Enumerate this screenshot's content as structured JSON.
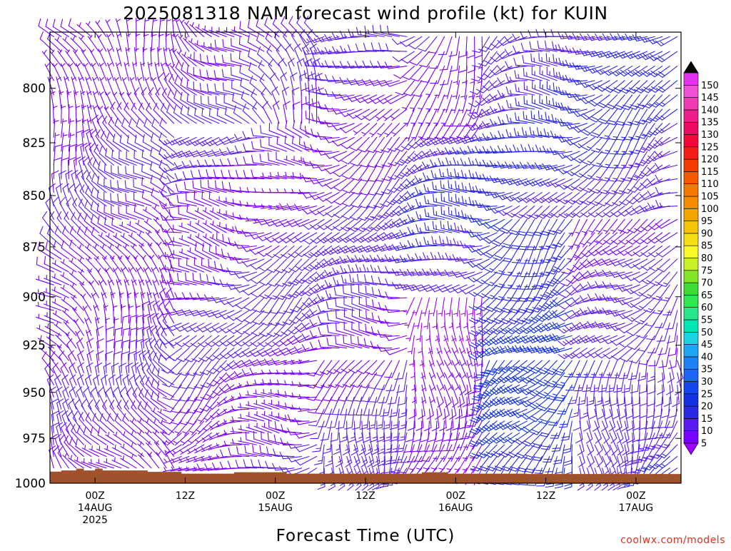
{
  "chart_data": {
    "type": "wind-barb time-height cross section",
    "title": "2025081318 NAM forecast wind profile (kt) for KUIN",
    "xlabel": "Forecast Time (UTC)",
    "ylabel": "",
    "credit": "coolwx.com/models",
    "y_axis": {
      "unit": "hPa",
      "direction": "decreasing upward",
      "range": [
        1000,
        775
      ],
      "tick_labels": [
        "800",
        "825",
        "850",
        "875",
        "900",
        "925",
        "950",
        "975",
        "1000"
      ],
      "tick_values": [
        800,
        825,
        850,
        875,
        900,
        925,
        950,
        975,
        1000
      ]
    },
    "x_axis": {
      "unit": "hours since 2025-08-13 18Z",
      "range": [
        0,
        84
      ],
      "ticks": [
        {
          "hour": 6,
          "lines": [
            "00Z",
            "14AUG",
            "2025"
          ]
        },
        {
          "hour": 18,
          "lines": [
            "12Z"
          ]
        },
        {
          "hour": 30,
          "lines": [
            "00Z",
            "15AUG"
          ]
        },
        {
          "hour": 42,
          "lines": [
            "12Z"
          ]
        },
        {
          "hour": 54,
          "lines": [
            "00Z",
            "16AUG"
          ]
        },
        {
          "hour": 66,
          "lines": [
            "12Z"
          ]
        },
        {
          "hour": 78,
          "lines": [
            "00Z",
            "17AUG"
          ]
        }
      ]
    },
    "colorbar": {
      "unit": "kt",
      "labels": [
        "5",
        "10",
        "15",
        "20",
        "25",
        "30",
        "35",
        "40",
        "45",
        "50",
        "55",
        "60",
        "65",
        "70",
        "75",
        "80",
        "85",
        "90",
        "95",
        "100",
        "105",
        "110",
        "115",
        "120",
        "125",
        "130",
        "135",
        "140",
        "145",
        "150"
      ],
      "colors": [
        "#7a00ff",
        "#5a1cf2",
        "#2b28e6",
        "#1432e2",
        "#1446ee",
        "#1e64f5",
        "#1e82f5",
        "#1ea6f5",
        "#1cd2e6",
        "#00e6b4",
        "#28e68c",
        "#32e650",
        "#3cdc32",
        "#82e628",
        "#c8f028",
        "#fafa28",
        "#f5de14",
        "#f5c30a",
        "#f5a500",
        "#f58c00",
        "#f57800",
        "#f55a00",
        "#f53c00",
        "#f51e14",
        "#f00a3c",
        "#ee0a64",
        "#f01e8c",
        "#f03cb4",
        "#f050d7",
        "#e632f0"
      ],
      "under_color": "#a000ff",
      "over_color": "#000000"
    },
    "terrain_color": "#a0522d",
    "terrain": [
      [
        0.0,
        993.5
      ],
      [
        1.5,
        993.5
      ],
      [
        1.5,
        992.8
      ],
      [
        3.5,
        992.8
      ],
      [
        3.5,
        991.8
      ],
      [
        4.5,
        991.8
      ],
      [
        4.5,
        992.8
      ],
      [
        6.0,
        992.8
      ],
      [
        6.0,
        991.8
      ],
      [
        7.0,
        991.8
      ],
      [
        7.0,
        992.8
      ],
      [
        13.0,
        992.8
      ],
      [
        13.0,
        993.6
      ],
      [
        17.5,
        993.6
      ],
      [
        17.5,
        994.6
      ],
      [
        24.5,
        994.6
      ],
      [
        24.5,
        993.8
      ],
      [
        31.5,
        993.8
      ],
      [
        31.5,
        994.6
      ],
      [
        49.5,
        994.6
      ],
      [
        49.5,
        993.8
      ],
      [
        53.0,
        993.8
      ],
      [
        53.0,
        994.6
      ],
      [
        63.5,
        994.6
      ],
      [
        63.5,
        994.8
      ],
      [
        84.0,
        994.8
      ],
      [
        84.0,
        1000
      ],
      [
        0.0,
        1000
      ]
    ],
    "barb_sampling": {
      "x_step_hours": 1,
      "first_hour": 0.5,
      "levels_hPa_from": 1000,
      "levels_hPa_to": 775,
      "level_step_hPa": 6.5
    },
    "wind_regimes": [
      {
        "hours": [
          0,
          17
        ],
        "levels": "all",
        "direction_deg": 325,
        "speed_kt": 8
      },
      {
        "hours": [
          17,
          36
        ],
        "levels": "below 900",
        "direction_deg": 250,
        "speed_kt": 9
      },
      {
        "hours": [
          17,
          36
        ],
        "levels": "900-820",
        "direction_deg": 260,
        "speed_kt": 10
      },
      {
        "hours": [
          17,
          36
        ],
        "levels": "above 820",
        "direction_deg": 320,
        "speed_kt": 8
      },
      {
        "hours": [
          36,
          48
        ],
        "levels": "below 930",
        "direction_deg": 200,
        "speed_kt": 12
      },
      {
        "hours": [
          36,
          48
        ],
        "levels": "930-820",
        "direction_deg": 250,
        "speed_kt": 11
      },
      {
        "hours": [
          36,
          48
        ],
        "levels": "above 820",
        "direction_deg": 250,
        "speed_kt": 10
      },
      {
        "hours": [
          48,
          58
        ],
        "levels": "below 900",
        "direction_deg": 195,
        "speed_kt": 6
      },
      {
        "hours": [
          48,
          58
        ],
        "levels": "900-820",
        "direction_deg": 245,
        "speed_kt": 14
      },
      {
        "hours": [
          48,
          58
        ],
        "levels": "above 820",
        "direction_deg": 220,
        "speed_kt": 10
      },
      {
        "hours": [
          58,
          70
        ],
        "levels": "below 930",
        "direction_deg": 205,
        "speed_kt": 22
      },
      {
        "hours": [
          58,
          70
        ],
        "levels": "930-860",
        "direction_deg": 240,
        "speed_kt": 20
      },
      {
        "hours": [
          58,
          70
        ],
        "levels": "above 860",
        "direction_deg": 250,
        "speed_kt": 14
      },
      {
        "hours": [
          70,
          84
        ],
        "levels": "below 930",
        "direction_deg": 195,
        "speed_kt": 14
      },
      {
        "hours": [
          70,
          84
        ],
        "levels": "930-860",
        "direction_deg": 220,
        "speed_kt": 10
      },
      {
        "hours": [
          70,
          84
        ],
        "levels": "above 860",
        "direction_deg": 245,
        "speed_kt": 15
      }
    ]
  }
}
